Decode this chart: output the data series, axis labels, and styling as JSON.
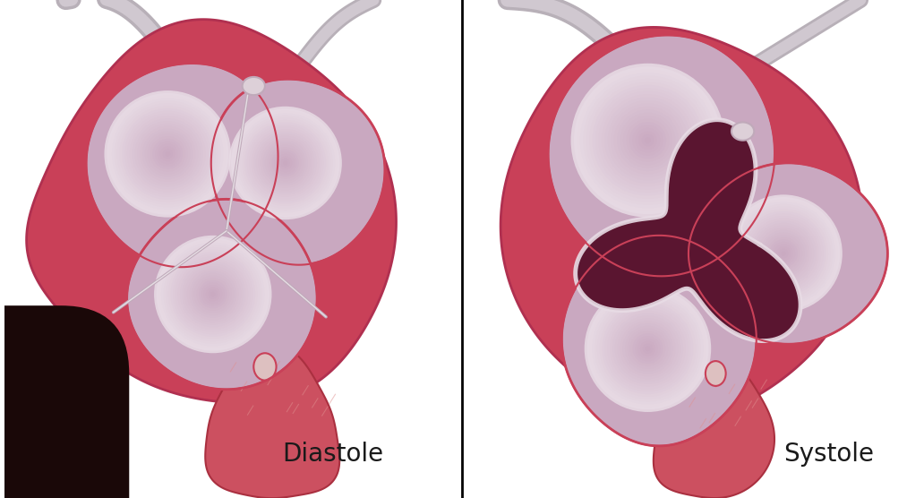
{
  "label_left": "Diastole",
  "label_right": "Systole",
  "label_fontsize": 20,
  "label_color": "#1a1a1a",
  "bg_color": "#ffffff",
  "divider_color": "#000000",
  "divider_linewidth": 2.0,
  "fig_width": 10.32,
  "fig_height": 5.56,
  "dpi": 100,
  "valve_pink": "#c9a8c0",
  "valve_light": "#dcc8d8",
  "valve_lighter": "#e8dce5",
  "ring_red": "#c94058",
  "ring_dark": "#b03050",
  "tissue_red": "#cc5060",
  "tissue_salmon": "#d4706a",
  "tissue_dark": "#aa3040",
  "cusp_line": "#c0aaba",
  "nodule_color": "#ddd0d8",
  "lumen_dark": "#5a1530",
  "lumen_border": "#e8dce5",
  "coronary_gray": "#b8b0b8",
  "coronary_light": "#d0c8d0",
  "dark_patch": "#1a0808"
}
